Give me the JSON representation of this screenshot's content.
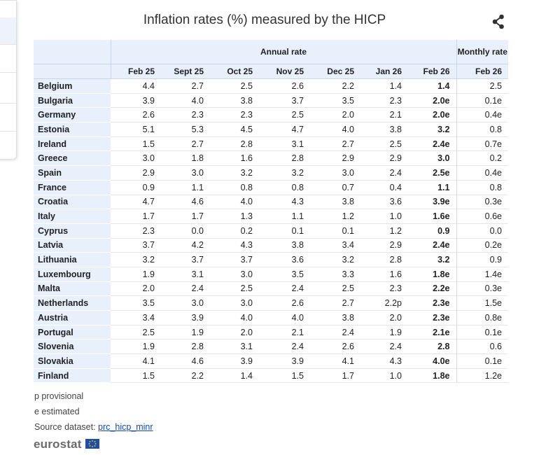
{
  "header": {
    "title": "Inflation rates (%) measured by the HICP"
  },
  "table": {
    "groups": [
      "Annual rate",
      "Monthly rate"
    ],
    "columns": [
      "Feb 25",
      "Sept 25",
      "Oct 25",
      "Nov 25",
      "Dec 25",
      "Jan 26",
      "Feb 26",
      "Feb 26"
    ],
    "rows": [
      {
        "country": "Belgium",
        "values": [
          "4.4",
          "2.7",
          "2.5",
          "2.6",
          "2.2",
          "1.4",
          "1.4",
          "2.5"
        ]
      },
      {
        "country": "Bulgaria",
        "values": [
          "3.9",
          "4.0",
          "3.8",
          "3.7",
          "3.5",
          "2.3",
          "2.0e",
          "0.1e"
        ]
      },
      {
        "country": "Germany",
        "values": [
          "2.6",
          "2.3",
          "2.3",
          "2.5",
          "2.0",
          "2.1",
          "2.0e",
          "0.4e"
        ]
      },
      {
        "country": "Estonia",
        "values": [
          "5.1",
          "5.3",
          "4.5",
          "4.7",
          "4.0",
          "3.8",
          "3.2",
          "0.8"
        ]
      },
      {
        "country": "Ireland",
        "values": [
          "1.5",
          "2.7",
          "2.8",
          "3.1",
          "2.7",
          "2.5",
          "2.4e",
          "0.7e"
        ]
      },
      {
        "country": "Greece",
        "values": [
          "3.0",
          "1.8",
          "1.6",
          "2.8",
          "2.9",
          "2.9",
          "3.0",
          "0.2"
        ]
      },
      {
        "country": "Spain",
        "values": [
          "2.9",
          "3.0",
          "3.2",
          "3.2",
          "3.0",
          "2.4",
          "2.5e",
          "0.4e"
        ]
      },
      {
        "country": "France",
        "values": [
          "0.9",
          "1.1",
          "0.8",
          "0.8",
          "0.7",
          "0.4",
          "1.1",
          "0.8"
        ]
      },
      {
        "country": "Croatia",
        "values": [
          "4.7",
          "4.6",
          "4.0",
          "4.3",
          "3.8",
          "3.6",
          "3.9e",
          "0.3e"
        ]
      },
      {
        "country": "Italy",
        "values": [
          "1.7",
          "1.7",
          "1.3",
          "1.1",
          "1.2",
          "1.0",
          "1.6e",
          "0.6e"
        ]
      },
      {
        "country": "Cyprus",
        "values": [
          "2.3",
          "0.0",
          "0.2",
          "0.1",
          "0.1",
          "1.2",
          "0.9",
          "0.0"
        ]
      },
      {
        "country": "Latvia",
        "values": [
          "3.7",
          "4.2",
          "4.3",
          "3.8",
          "3.4",
          "2.9",
          "2.4e",
          "0.2e"
        ]
      },
      {
        "country": "Lithuania",
        "values": [
          "3.2",
          "3.7",
          "3.7",
          "3.6",
          "3.2",
          "2.8",
          "3.2",
          "0.9"
        ]
      },
      {
        "country": "Luxembourg",
        "values": [
          "1.9",
          "3.1",
          "3.0",
          "3.5",
          "3.3",
          "1.6",
          "1.8e",
          "1.4e"
        ]
      },
      {
        "country": "Malta",
        "values": [
          "2.0",
          "2.4",
          "2.5",
          "2.4",
          "2.5",
          "2.3",
          "2.2e",
          "0.3e"
        ]
      },
      {
        "country": "Netherlands",
        "values": [
          "3.5",
          "3.0",
          "3.0",
          "2.6",
          "2.7",
          "2.2p",
          "2.3e",
          "1.5e"
        ]
      },
      {
        "country": "Austria",
        "values": [
          "3.4",
          "3.9",
          "4.0",
          "4.0",
          "3.8",
          "2.0",
          "2.3e",
          "0.8e"
        ]
      },
      {
        "country": "Portugal",
        "values": [
          "2.5",
          "1.9",
          "2.0",
          "2.1",
          "2.4",
          "1.9",
          "2.1e",
          "0.1e"
        ]
      },
      {
        "country": "Slovenia",
        "values": [
          "1.9",
          "2.8",
          "3.1",
          "2.4",
          "2.6",
          "2.4",
          "2.8",
          "0.6"
        ]
      },
      {
        "country": "Slovakia",
        "values": [
          "4.1",
          "4.6",
          "3.9",
          "3.9",
          "4.1",
          "4.3",
          "4.0e",
          "0.1e"
        ]
      },
      {
        "country": "Finland",
        "values": [
          "1.5",
          "2.2",
          "1.4",
          "1.5",
          "1.7",
          "1.0",
          "1.8e",
          "1.2e"
        ]
      }
    ]
  },
  "notes": [
    "p provisional",
    "e estimated"
  ],
  "source": {
    "label": "Source dataset:",
    "link": "prc_hicp_minr"
  },
  "logo": "eurostat"
}
